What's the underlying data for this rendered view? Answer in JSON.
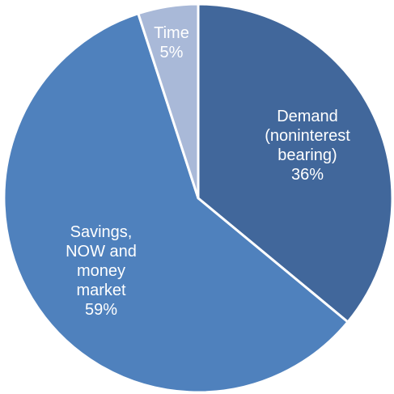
{
  "chart_data": {
    "type": "pie",
    "categories": [
      "Demand (noninterest bearing)",
      "Savings, NOW and money market",
      "Time"
    ],
    "values": [
      36,
      59,
      5
    ],
    "value_labels": [
      "36%",
      "59%",
      "5%"
    ],
    "colors": [
      "#41679b",
      "#4f81bd",
      "#a9b9d8"
    ]
  }
}
